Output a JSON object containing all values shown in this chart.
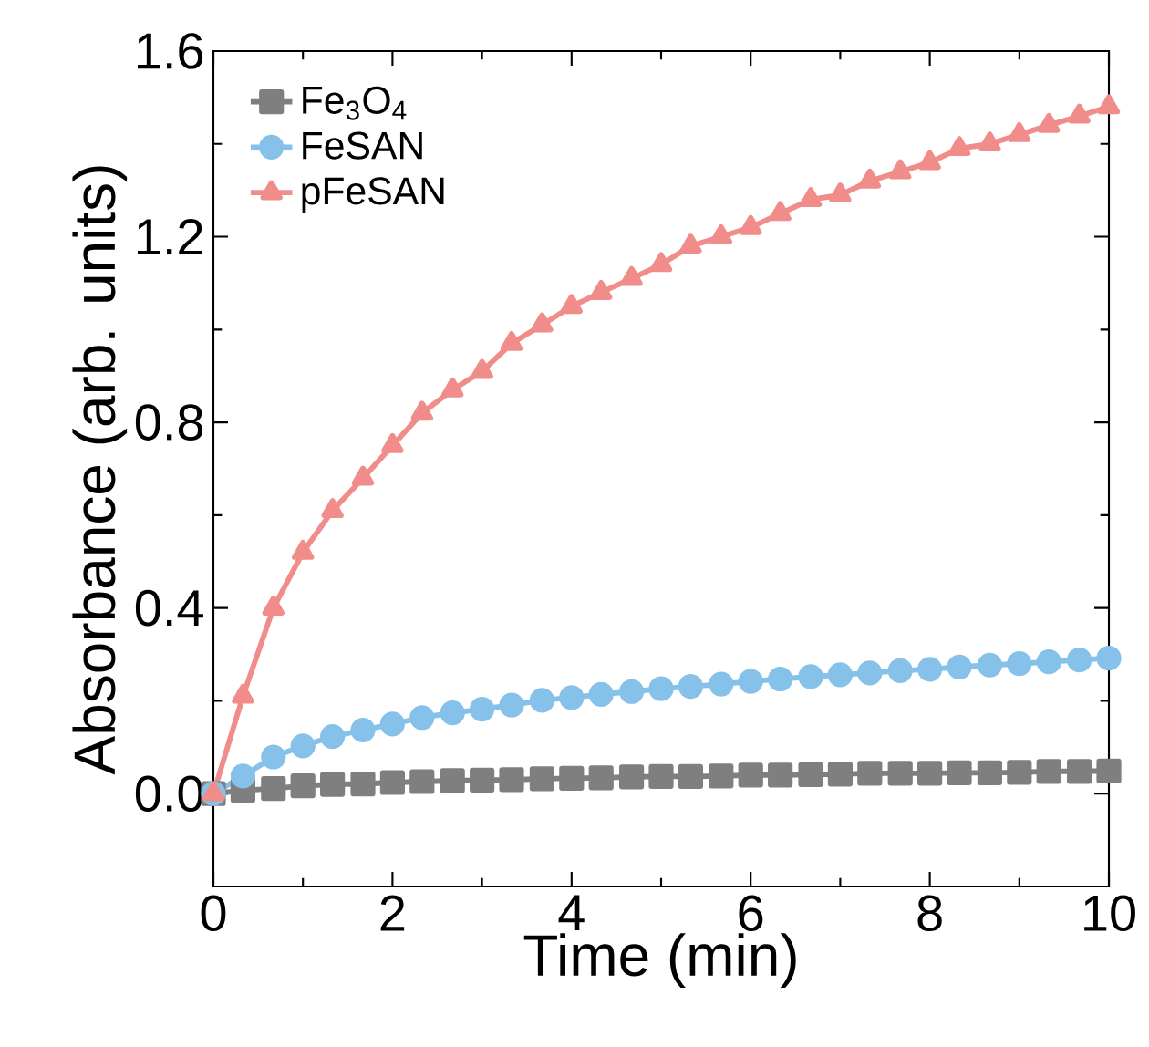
{
  "chart_data": {
    "type": "line",
    "xlabel": "Time (min)",
    "ylabel": "Absorbance (arb. units)",
    "x": [
      0,
      0.33,
      0.67,
      1,
      1.33,
      1.67,
      2,
      2.33,
      2.67,
      3,
      3.33,
      3.67,
      4,
      4.33,
      4.67,
      5,
      5.33,
      5.67,
      6,
      6.33,
      6.67,
      7,
      7.33,
      7.67,
      8,
      8.33,
      8.67,
      9,
      9.33,
      9.67,
      10
    ],
    "series": [
      {
        "name": "Fe$_{3}$O$_{4}$",
        "color": "#7f7f7f",
        "marker": "square",
        "values": [
          0,
          0.007,
          0.011,
          0.017,
          0.02,
          0.021,
          0.024,
          0.026,
          0.028,
          0.029,
          0.03,
          0.032,
          0.033,
          0.034,
          0.036,
          0.037,
          0.037,
          0.038,
          0.04,
          0.04,
          0.041,
          0.042,
          0.044,
          0.044,
          0.044,
          0.045,
          0.045,
          0.046,
          0.048,
          0.048,
          0.049
        ]
      },
      {
        "name": "FeSAN",
        "color": "#86c1ea",
        "marker": "circle",
        "values": [
          0,
          0.038,
          0.079,
          0.103,
          0.123,
          0.137,
          0.15,
          0.164,
          0.174,
          0.182,
          0.191,
          0.201,
          0.207,
          0.214,
          0.22,
          0.226,
          0.231,
          0.236,
          0.242,
          0.247,
          0.252,
          0.256,
          0.26,
          0.265,
          0.268,
          0.273,
          0.277,
          0.28,
          0.284,
          0.288,
          0.292
        ]
      },
      {
        "name": "pFeSAN",
        "color": "#f08c8a",
        "marker": "triangle",
        "values": [
          0,
          0.21,
          0.4,
          0.52,
          0.61,
          0.68,
          0.75,
          0.82,
          0.87,
          0.91,
          0.97,
          1.01,
          1.05,
          1.08,
          1.11,
          1.14,
          1.18,
          1.2,
          1.22,
          1.25,
          1.28,
          1.29,
          1.32,
          1.34,
          1.36,
          1.39,
          1.4,
          1.42,
          1.44,
          1.46,
          1.48
        ]
      }
    ],
    "xlim": [
      0,
      10
    ],
    "xticks": [
      0,
      2,
      4,
      6,
      8,
      10
    ],
    "ylim": [
      -0.2,
      1.6
    ],
    "yticks": [
      {
        "value": 0,
        "label": "0.0"
      },
      {
        "value": 0.4,
        "label": "0.4"
      },
      {
        "value": 0.8,
        "label": "0.8"
      },
      {
        "value": 1.2,
        "label": "1.2"
      },
      {
        "value": 1.6,
        "label": "1.6"
      }
    ],
    "legend": "top left"
  }
}
